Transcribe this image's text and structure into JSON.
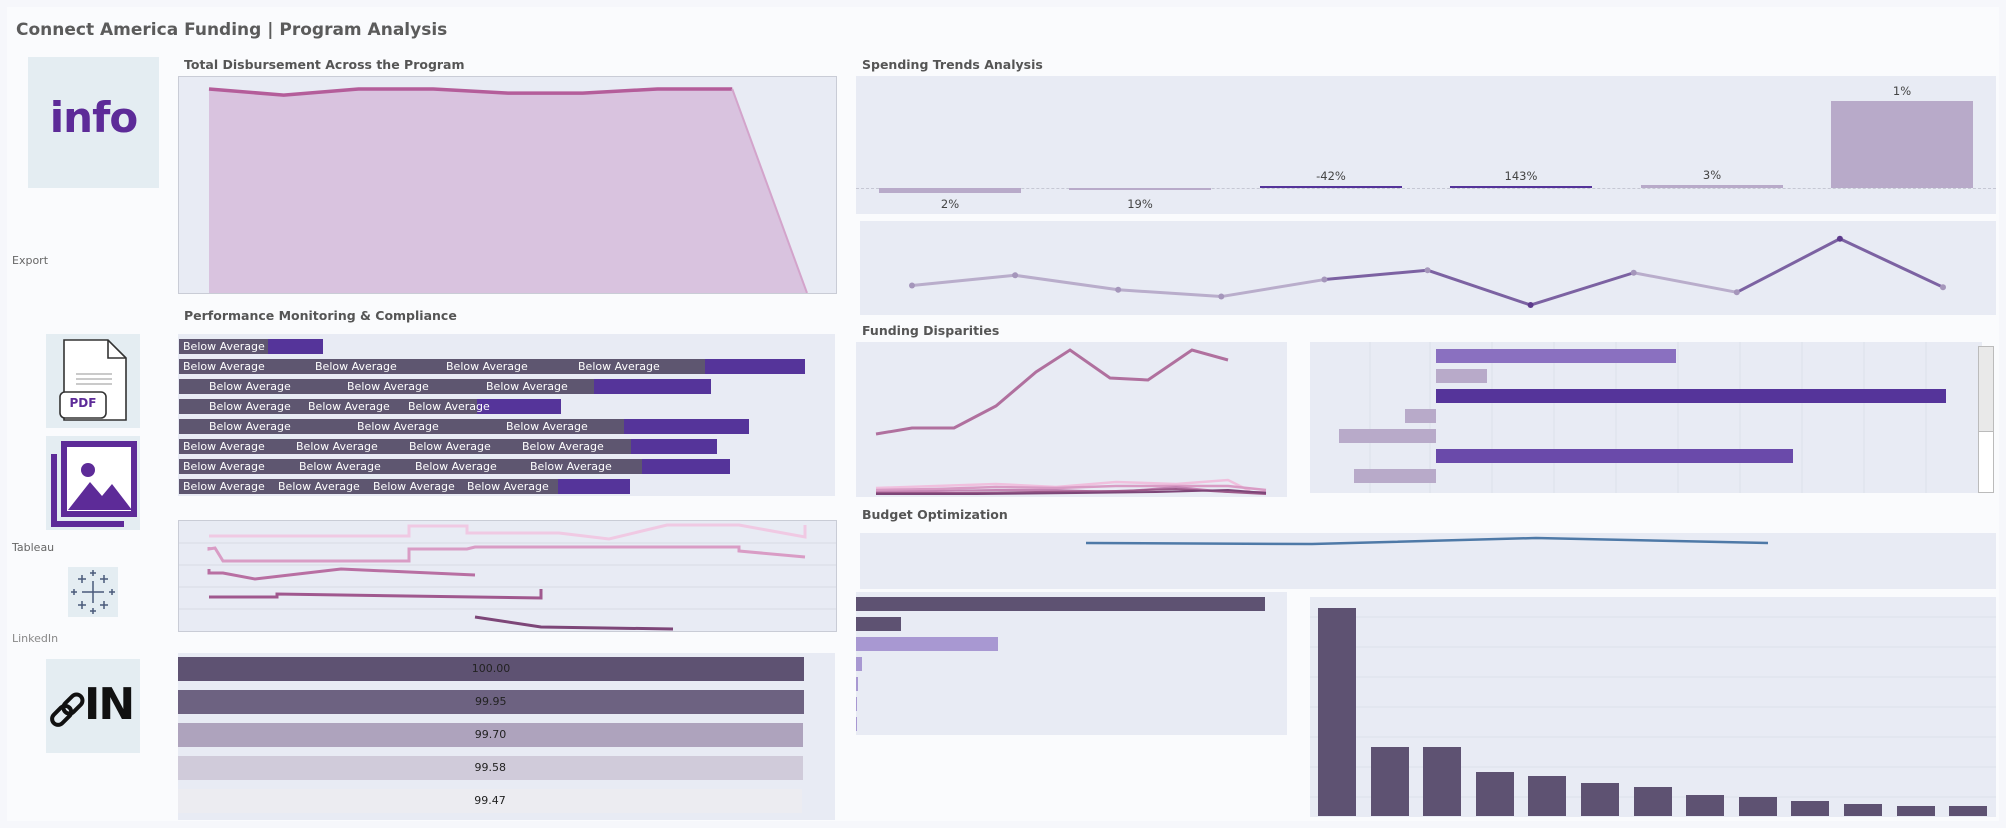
{
  "dashboard": {
    "title": "Connect America Funding | Program Analysis"
  },
  "sidebar": {
    "info_tile": {
      "text": "info",
      "icon": "info-icon"
    },
    "export_label": "Export",
    "pdf_tile": {
      "text": "PDF",
      "icon": "pdf-file-icon"
    },
    "image_tile": {
      "icon": "image-gallery-icon"
    },
    "tableau_label": "Tableau",
    "tableau_tile": {
      "icon": "tableau-logo-icon"
    },
    "linkedin_label": "LinkedIn",
    "linkedin_tile": {
      "text": "IN",
      "icon": "linkedin-link-icon"
    }
  },
  "sections": {
    "total_disbursement": "Total Disbursement Across the Program",
    "performance": "Performance Monitoring & Compliance",
    "spending_trends": "Spending Trends Analysis",
    "funding_disparities": "Funding Disparities",
    "budget_optimization": "Budget Optimization"
  },
  "performance": {
    "segment_label": "Below Average",
    "rows": [
      {
        "segments": 1,
        "value": 0.23
      },
      {
        "segments": 4,
        "value": 1.0
      },
      {
        "segments": 3,
        "value": 0.85
      },
      {
        "segments": 3,
        "value": 0.61
      },
      {
        "segments": 3,
        "value": 0.91
      },
      {
        "segments": 4,
        "value": 0.86
      },
      {
        "segments": 4,
        "value": 0.88
      },
      {
        "segments": 4,
        "value": 0.72
      }
    ]
  },
  "scores": [
    {
      "label": "100.00",
      "color": "#5e5272"
    },
    {
      "label": "99.95",
      "color": "#6d6281"
    },
    {
      "label": "99.70",
      "color": "#aea3bd"
    },
    {
      "label": "99.58",
      "color": "#d0cbda"
    },
    {
      "label": "99.47",
      "color": "#ececf1"
    }
  ],
  "spending_trends": {
    "changes": [
      {
        "label": "2%",
        "value": -2
      },
      {
        "label": "19%",
        "value": -1
      },
      {
        "label": "-42%",
        "value": 0.6
      },
      {
        "label": "143%",
        "value": 0.6
      },
      {
        "label": "3%",
        "value": 1.5
      },
      {
        "label": "1%",
        "value": 38
      }
    ]
  },
  "chart_data": [
    {
      "type": "area",
      "x": [
        1,
        2,
        3,
        4,
        5,
        6,
        7,
        8,
        9
      ],
      "values": [
        100,
        97,
        100,
        100,
        98,
        98,
        100,
        100,
        0
      ],
      "ylim": [
        0,
        100
      ]
    },
    {
      "type": "line",
      "x": [
        1,
        2,
        3,
        4,
        5,
        6,
        7,
        8,
        9,
        10,
        11
      ],
      "values": [
        30,
        42,
        25,
        17,
        37,
        48,
        7,
        45,
        22,
        85,
        28
      ]
    },
    {
      "type": "bar",
      "categories": [
        "1",
        "2",
        "3",
        "4",
        "5",
        "6",
        "7"
      ],
      "values": [
        47,
        10,
        100,
        -6,
        -19,
        70,
        -16
      ]
    },
    {
      "type": "bar",
      "categories": [
        "1",
        "2",
        "3",
        "4",
        "5",
        "6",
        "7",
        "8",
        "9",
        "10",
        "11",
        "12",
        "13"
      ],
      "values": [
        100,
        33,
        33,
        21,
        19,
        16,
        14,
        10,
        9,
        7,
        6,
        5,
        5
      ]
    }
  ],
  "colors": {
    "accent": "#55349a",
    "segment": "#5e5670",
    "area": "#d9c3df",
    "area_line": "#b45d9a",
    "panel": "#e8ebf4"
  }
}
